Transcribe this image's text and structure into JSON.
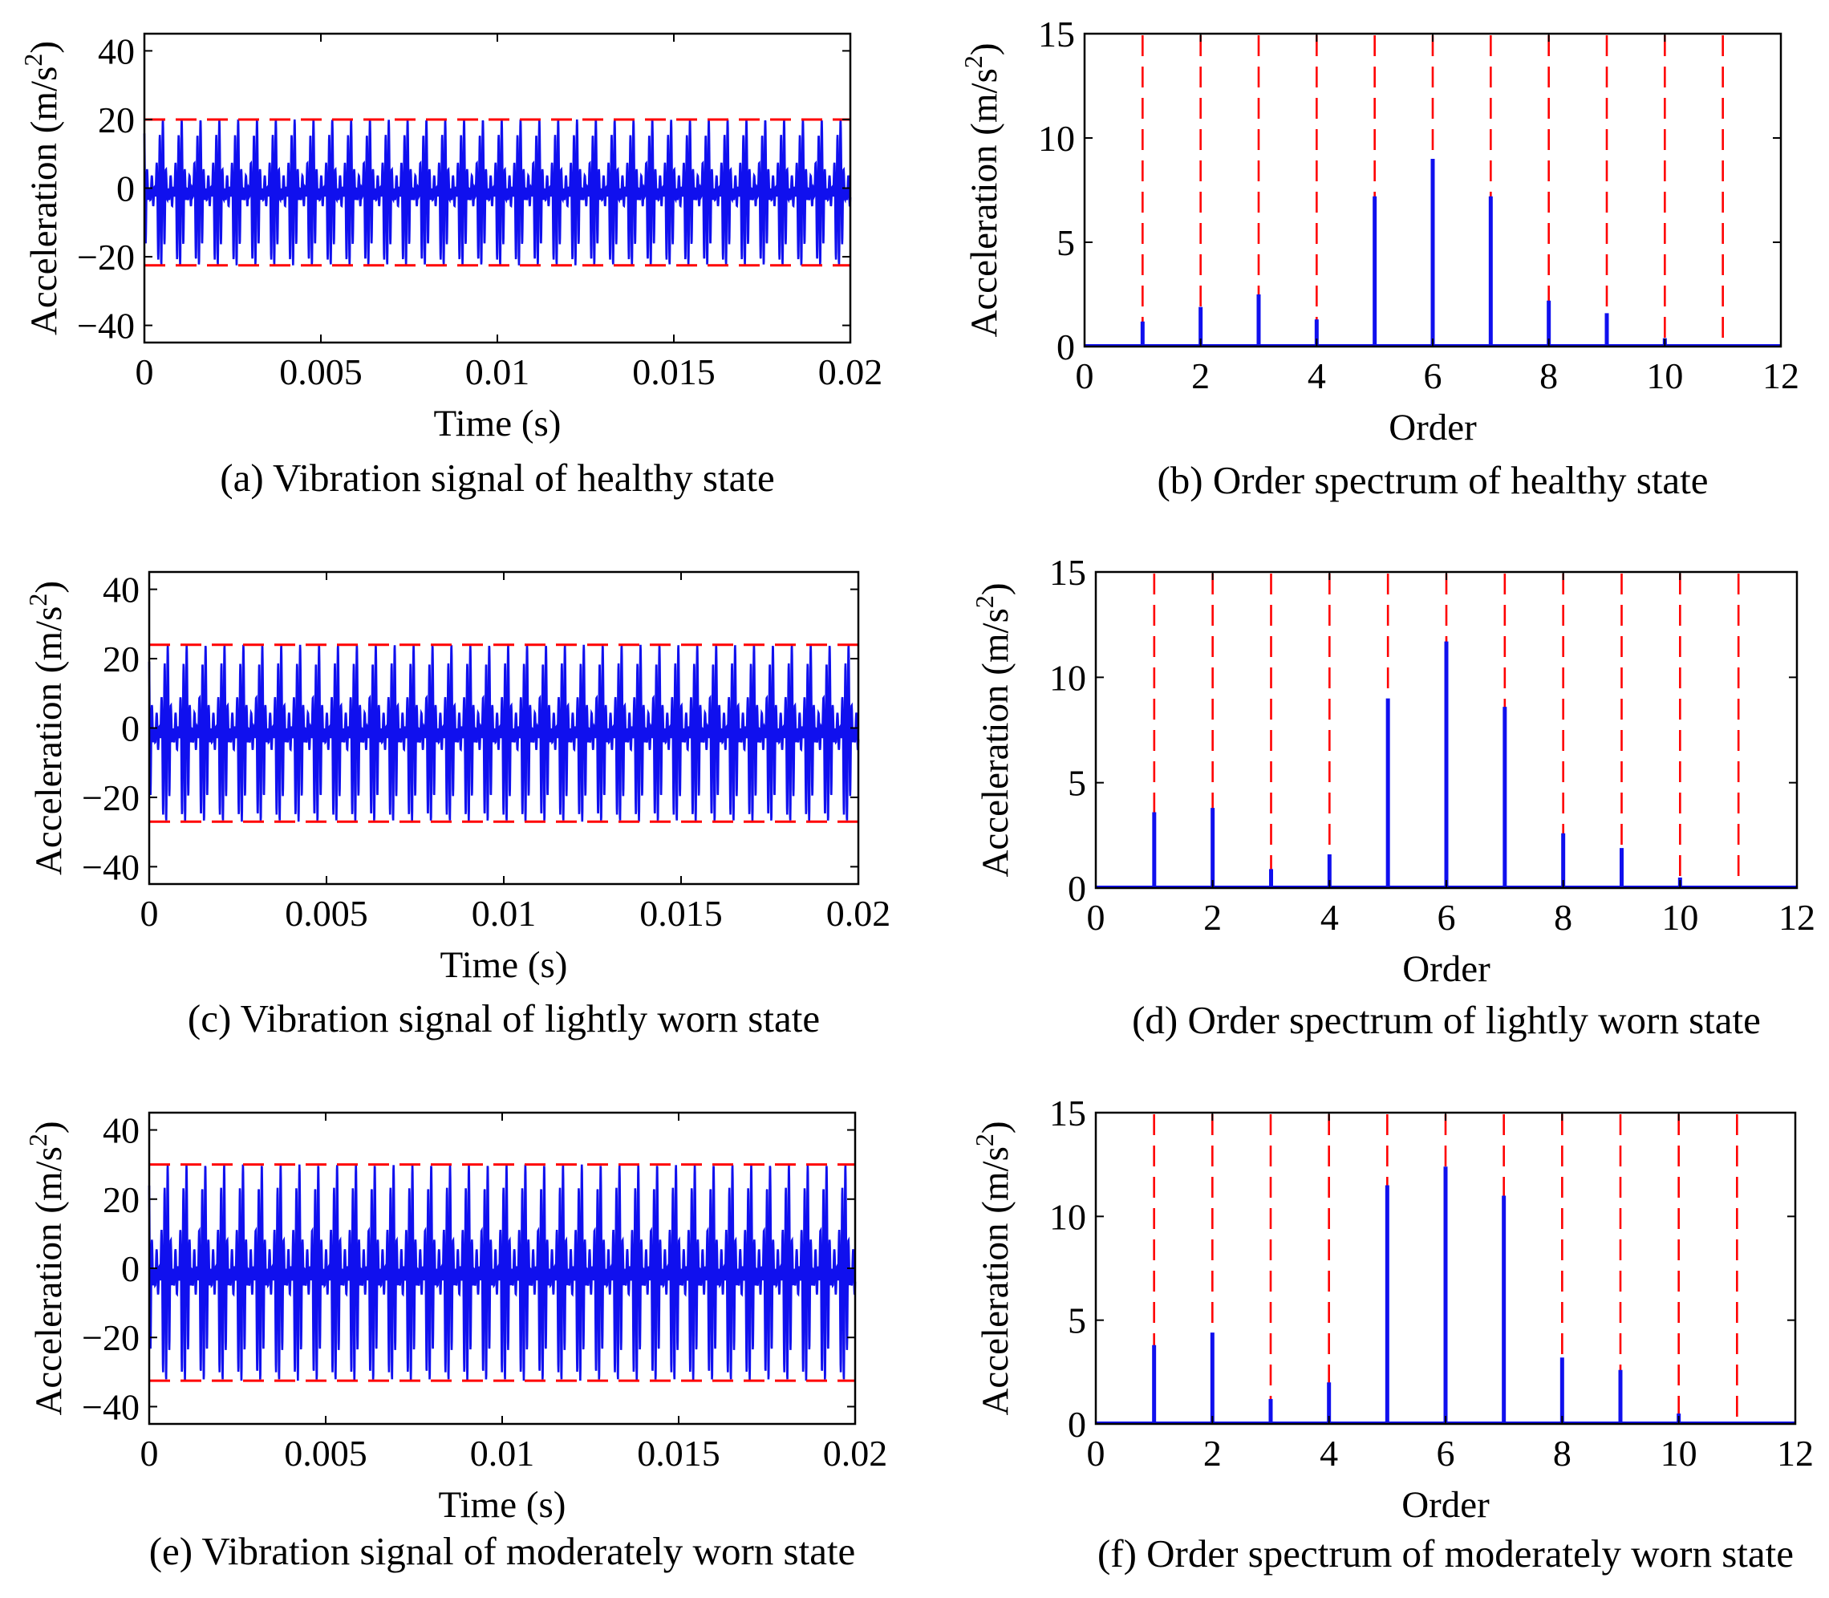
{
  "figure": {
    "colors": {
      "signal": "#1010ee",
      "reference": "#ff0000",
      "axis": "#000000"
    }
  },
  "chart_data": [
    {
      "id": "a",
      "type": "line",
      "title": "(a) Vibration signal of healthy state",
      "xlabel": "Time (s)",
      "ylabel": "Acceleration (m/s",
      "xlim": [
        0,
        0.02
      ],
      "ylim": [
        -45,
        45
      ],
      "xticks": [
        0,
        0.005,
        0.01,
        0.015,
        0.02
      ],
      "xtick_labels": [
        "0",
        "0.005",
        "0.01",
        "0.015",
        "0.02"
      ],
      "yticks": [
        -40,
        -20,
        0,
        20,
        40
      ],
      "ytick_labels": [
        "−40",
        "−20",
        "0",
        "20",
        "40"
      ],
      "grid": false,
      "series": [
        {
          "name": "vibration signal",
          "amplitude_max": 20,
          "amplitude_min": -22.5
        }
      ],
      "reference_lines": [
        20,
        -22.5
      ]
    },
    {
      "id": "b",
      "type": "bar",
      "title": "(b) Order spectrum of healthy state",
      "xlabel": "Order",
      "ylabel": "Acceleration (m/s",
      "xlim": [
        0,
        12
      ],
      "ylim": [
        0,
        15
      ],
      "xticks": [
        0,
        2,
        4,
        6,
        8,
        10,
        12
      ],
      "xtick_labels": [
        "0",
        "2",
        "4",
        "6",
        "8",
        "10",
        "12"
      ],
      "yticks": [
        0,
        5,
        10,
        15
      ],
      "ytick_labels": [
        "0",
        "5",
        "10",
        "15"
      ],
      "grid": false,
      "orders": [
        1,
        2,
        3,
        4,
        5,
        6,
        7,
        8,
        9,
        10
      ],
      "values": [
        1.2,
        1.9,
        2.5,
        1.3,
        7.2,
        9.0,
        7.2,
        2.2,
        1.6,
        0.4
      ],
      "reference_lines": [
        1,
        2,
        3,
        4,
        5,
        6,
        7,
        8,
        9,
        10,
        11
      ]
    },
    {
      "id": "c",
      "type": "line",
      "title": "(c) Vibration signal of lightly worn state",
      "xlabel": "Time (s)",
      "ylabel": "Acceleration (m/s",
      "xlim": [
        0,
        0.02
      ],
      "ylim": [
        -45,
        45
      ],
      "xticks": [
        0,
        0.005,
        0.01,
        0.015,
        0.02
      ],
      "xtick_labels": [
        "0",
        "0.005",
        "0.01",
        "0.015",
        "0.02"
      ],
      "yticks": [
        -40,
        -20,
        0,
        20,
        40
      ],
      "ytick_labels": [
        "−40",
        "−20",
        "0",
        "20",
        "40"
      ],
      "grid": false,
      "series": [
        {
          "name": "vibration signal",
          "amplitude_max": 24,
          "amplitude_min": -27
        }
      ],
      "reference_lines": [
        24,
        -27
      ]
    },
    {
      "id": "d",
      "type": "bar",
      "title": "(d) Order spectrum of lightly worn state",
      "xlabel": "Order",
      "ylabel": "Acceleration (m/s",
      "xlim": [
        0,
        12
      ],
      "ylim": [
        0,
        15
      ],
      "xticks": [
        0,
        2,
        4,
        6,
        8,
        10,
        12
      ],
      "xtick_labels": [
        "0",
        "2",
        "4",
        "6",
        "8",
        "10",
        "12"
      ],
      "yticks": [
        0,
        5,
        10,
        15
      ],
      "ytick_labels": [
        "0",
        "5",
        "10",
        "15"
      ],
      "grid": false,
      "orders": [
        1,
        2,
        3,
        4,
        5,
        6,
        7,
        8,
        9,
        10
      ],
      "values": [
        3.6,
        3.8,
        0.9,
        1.6,
        9.0,
        11.7,
        8.6,
        2.6,
        1.9,
        0.5
      ],
      "reference_lines": [
        1,
        2,
        3,
        4,
        5,
        6,
        7,
        8,
        9,
        10,
        11
      ]
    },
    {
      "id": "e",
      "type": "line",
      "title": "(e) Vibration signal of moderately worn state",
      "xlabel": "Time (s)",
      "ylabel": "Acceleration (m/s",
      "xlim": [
        0,
        0.02
      ],
      "ylim": [
        -45,
        45
      ],
      "xticks": [
        0,
        0.005,
        0.01,
        0.015,
        0.02
      ],
      "xtick_labels": [
        "0",
        "0.005",
        "0.01",
        "0.015",
        "0.02"
      ],
      "yticks": [
        -40,
        -20,
        0,
        20,
        40
      ],
      "ytick_labels": [
        "−40",
        "−20",
        "0",
        "20",
        "40"
      ],
      "grid": false,
      "series": [
        {
          "name": "vibration signal",
          "amplitude_max": 30,
          "amplitude_min": -32.5
        }
      ],
      "reference_lines": [
        30,
        -32.5
      ]
    },
    {
      "id": "f",
      "type": "bar",
      "title": "(f) Order spectrum of moderately worn state",
      "xlabel": "Order",
      "ylabel": "Acceleration (m/s",
      "xlim": [
        0,
        12
      ],
      "ylim": [
        0,
        15
      ],
      "xticks": [
        0,
        2,
        4,
        6,
        8,
        10,
        12
      ],
      "xtick_labels": [
        "0",
        "2",
        "4",
        "6",
        "8",
        "10",
        "12"
      ],
      "yticks": [
        0,
        5,
        10,
        15
      ],
      "ytick_labels": [
        "0",
        "5",
        "10",
        "15"
      ],
      "grid": false,
      "orders": [
        1,
        2,
        3,
        4,
        5,
        6,
        7,
        8,
        9,
        10
      ],
      "values": [
        3.8,
        4.4,
        1.2,
        2.0,
        11.5,
        12.4,
        11.0,
        3.2,
        2.6,
        0.5
      ],
      "reference_lines": [
        1,
        2,
        3,
        4,
        5,
        6,
        7,
        8,
        9,
        10,
        11
      ]
    }
  ]
}
